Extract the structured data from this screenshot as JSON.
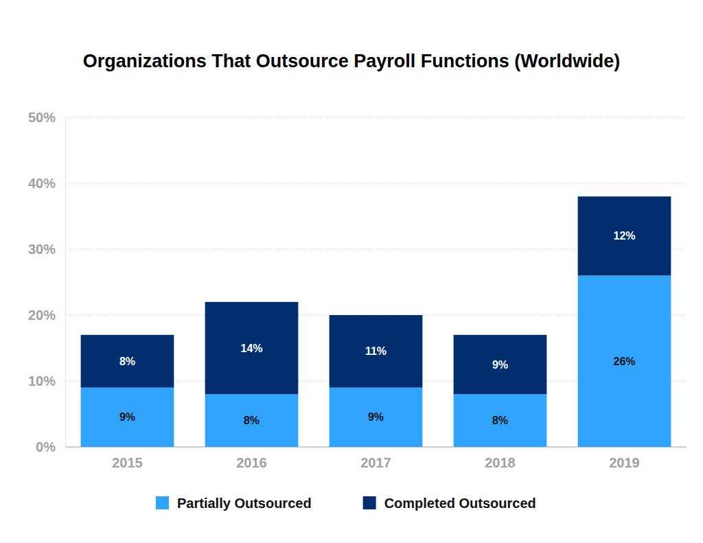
{
  "chart_data": {
    "type": "bar",
    "title": "Organizations That Outsource Payroll Functions (Worldwide)",
    "categories": [
      "2015",
      "2016",
      "2017",
      "2018",
      "2019"
    ],
    "series": [
      {
        "name": "Partially Outsourced",
        "color": "#30a3fd",
        "values": [
          9,
          8,
          9,
          8,
          26
        ],
        "value_labels": [
          "9%",
          "8%",
          "9%",
          "8%",
          "26%"
        ]
      },
      {
        "name": "Completed Outsourced",
        "color": "#002e6e",
        "values": [
          8,
          14,
          11,
          9,
          12
        ],
        "value_labels": [
          "8%",
          "14%",
          "11%",
          "9%",
          "12%"
        ]
      }
    ],
    "ylim": [
      0,
      50
    ],
    "yticks": [
      {
        "value": 0,
        "label": "0%"
      },
      {
        "value": 10,
        "label": "10%"
      },
      {
        "value": 20,
        "label": "20%"
      },
      {
        "value": 30,
        "label": "30%"
      },
      {
        "value": 40,
        "label": "40%"
      },
      {
        "value": 50,
        "label": "50%"
      }
    ],
    "grid": true,
    "stacked": true,
    "data_labels": true,
    "legend": "bottom"
  }
}
